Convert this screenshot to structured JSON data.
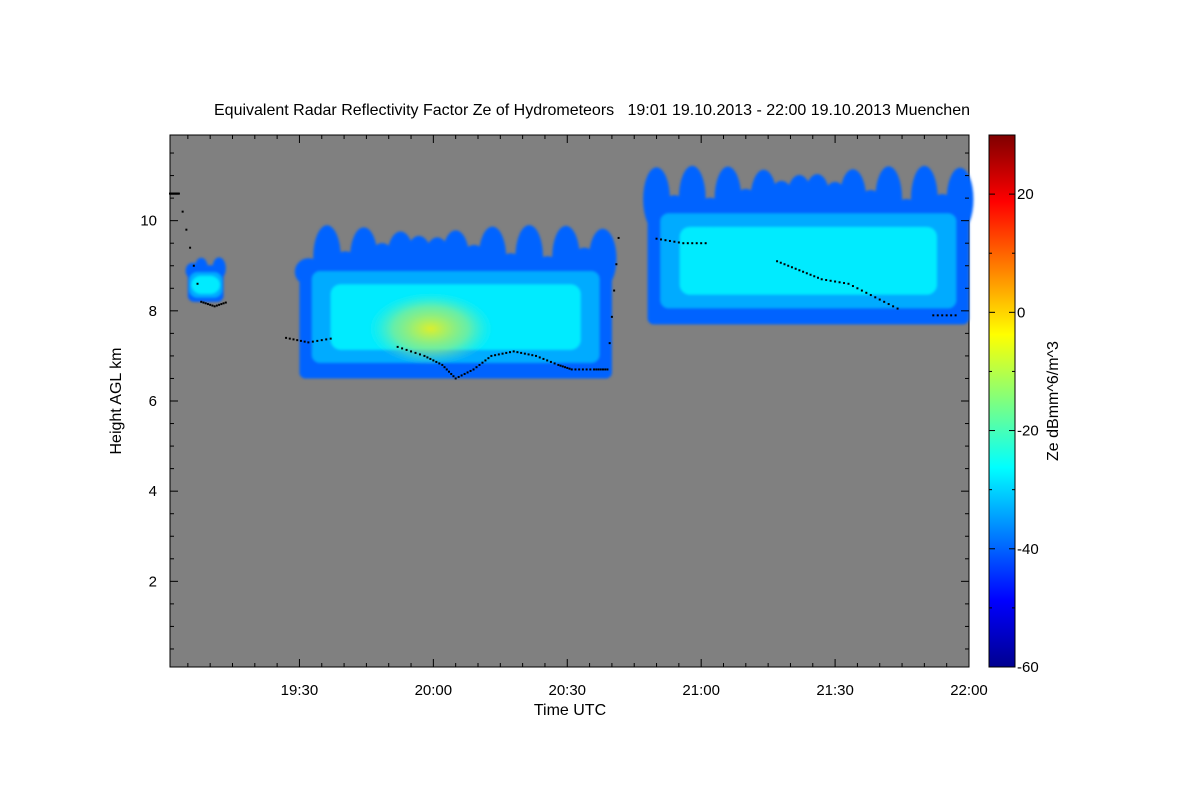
{
  "chart_data": {
    "type": "heatmap",
    "title": "Equivalent Radar Reflectivity Factor Ze of Hydrometeors   19:01 19.10.2013 - 22:00 19.10.2013 Muenchen",
    "xlabel": "Time UTC",
    "ylabel": "Height AGL km",
    "xlim": [
      "19:01",
      "22:00"
    ],
    "ylim": [
      0.1,
      11.9
    ],
    "x_ticks": [
      "19:30",
      "20:00",
      "20:30",
      "21:00",
      "21:30",
      "22:00"
    ],
    "y_ticks": [
      "2",
      "4",
      "6",
      "8",
      "10"
    ],
    "colorbar": {
      "label": "Ze dBmm^6/m^3",
      "range": [
        -60,
        30
      ],
      "ticks": [
        "-60",
        "-40",
        "-20",
        "0",
        "20"
      ],
      "colormap": "jet"
    },
    "background_color": "#808080",
    "cloud_layers": [
      {
        "time_start": "19:05",
        "time_end": "19:13",
        "base_km": 8.2,
        "top_km": 9.0,
        "ze_max_dbz": -30
      },
      {
        "time_start": "19:30",
        "time_end": "20:40",
        "base_km": 6.5,
        "top_km": 9.4,
        "ze_max_dbz": -12
      },
      {
        "time_start": "20:48",
        "time_end": "22:00",
        "base_km": 7.7,
        "top_km": 10.7,
        "ze_max_dbz": -26
      }
    ],
    "cloud_base_series": {
      "time": [
        "19:01",
        "19:02",
        "19:03",
        "19:08",
        "19:11",
        "19:14",
        "19:27",
        "19:32",
        "19:38",
        "19:45",
        "19:52",
        "19:58",
        "20:02",
        "20:05",
        "20:09",
        "20:13",
        "20:18",
        "20:23",
        "20:28",
        "20:31",
        "20:36",
        "20:39",
        "20:42",
        "20:50",
        "20:56",
        "21:02",
        "21:10",
        "21:17",
        "21:22",
        "21:27",
        "21:33",
        "21:39",
        "21:45",
        "21:52",
        "21:58"
      ],
      "height_km": [
        10.6,
        10.6,
        10.6,
        8.2,
        8.1,
        8.2,
        7.4,
        7.3,
        7.4,
        7.5,
        7.2,
        7.0,
        6.8,
        6.5,
        6.7,
        7.0,
        7.1,
        7.0,
        6.8,
        6.7,
        6.7,
        6.7,
        10.2,
        9.6,
        9.5,
        9.5,
        9.3,
        9.1,
        8.9,
        8.7,
        8.6,
        8.3,
        8.0,
        7.9,
        7.9
      ]
    }
  }
}
